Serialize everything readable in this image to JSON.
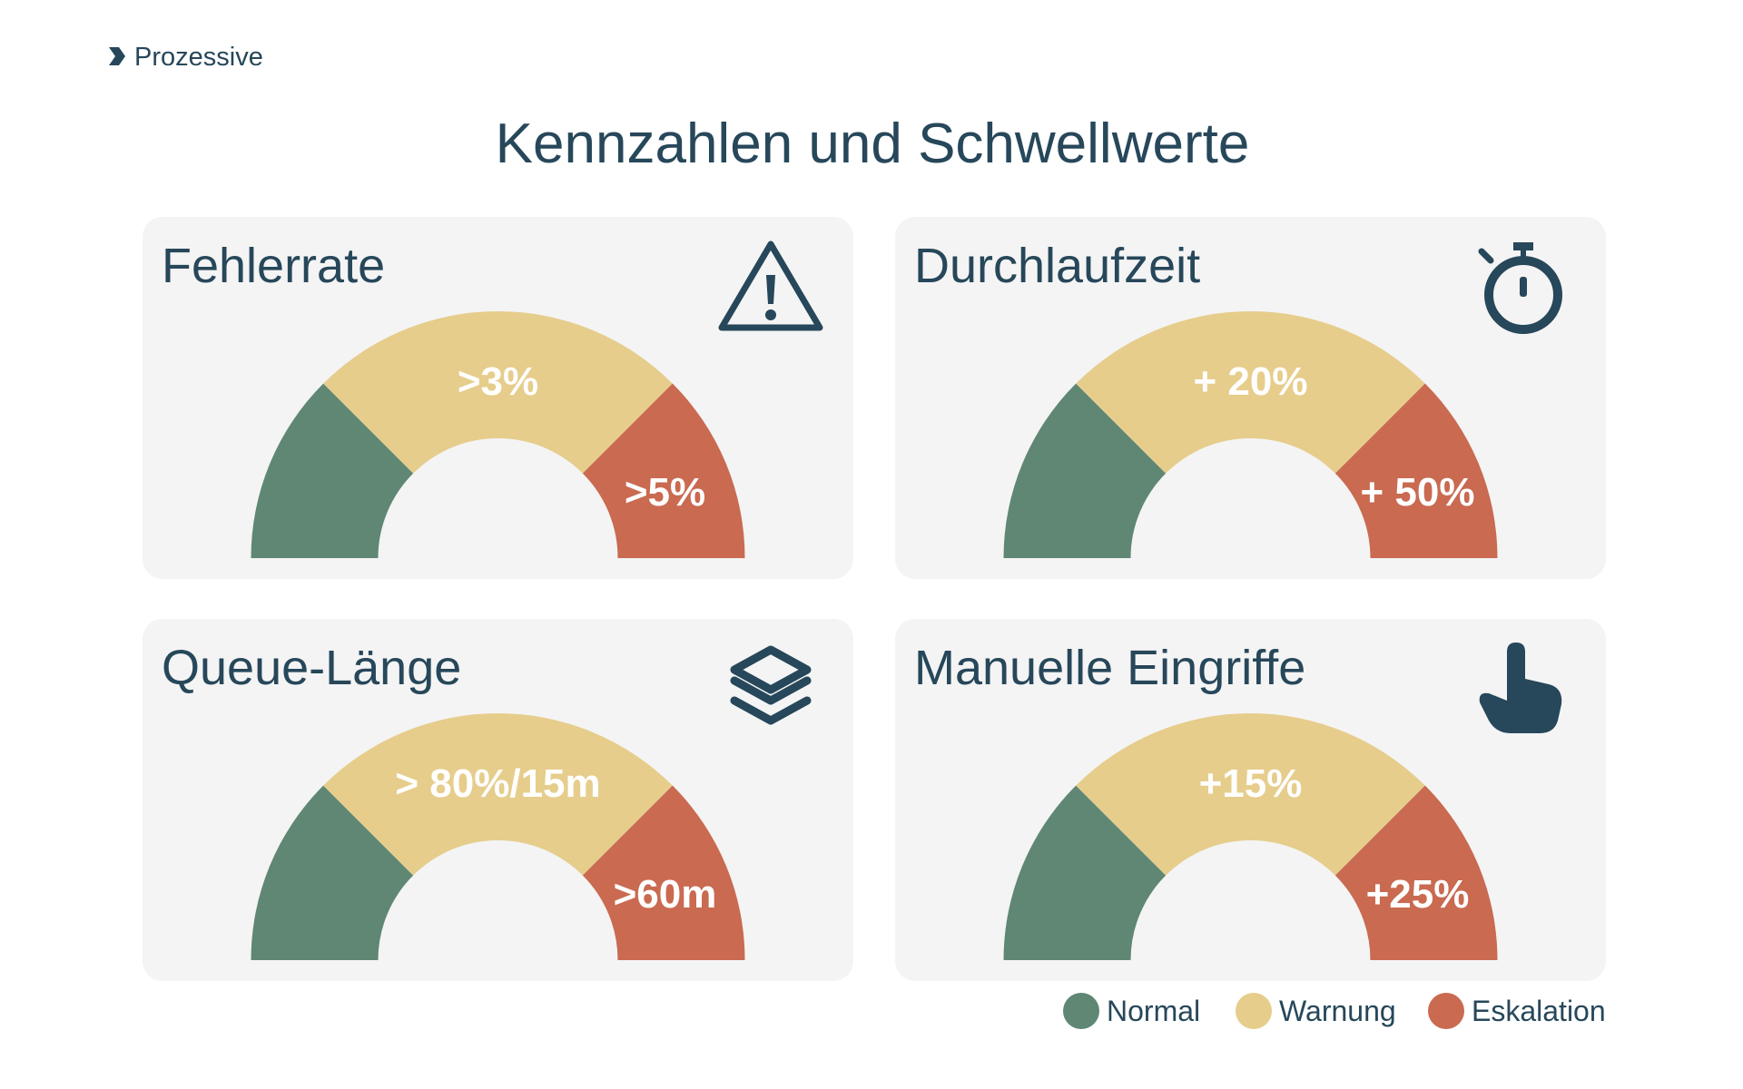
{
  "brand": "Prozessive",
  "title": "Kennzahlen und Schwellwerte",
  "cards": [
    {
      "title": "Fehlerrate",
      "warning": ">3%",
      "escalation": ">5%"
    },
    {
      "title": "Durchlaufzeit",
      "warning": "+ 20%",
      "escalation": "+ 50%"
    },
    {
      "title": "Queue-Länge",
      "warning": "> 80%/15m",
      "escalation": ">60m"
    },
    {
      "title": "Manuelle Eingriffe",
      "warning": "+15%",
      "escalation": "+25%"
    }
  ],
  "legend": [
    {
      "label": "Normal"
    },
    {
      "label": "Warnung"
    },
    {
      "label": "Eskalation"
    }
  ]
}
